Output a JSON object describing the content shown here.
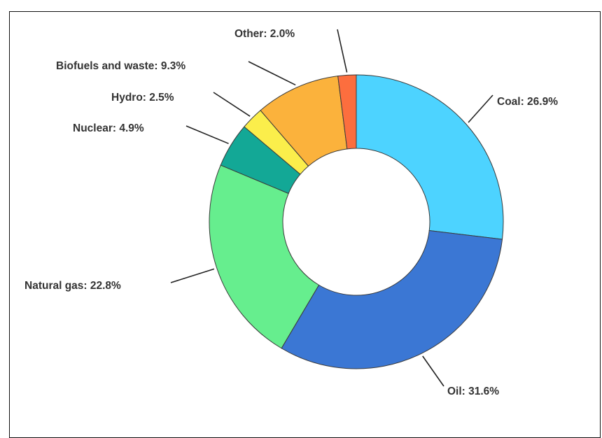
{
  "chart_data": {
    "type": "pie",
    "donut": true,
    "title": "",
    "slices": [
      {
        "label": "Coal: 26.9%",
        "name": "Coal",
        "value": 26.9,
        "color": "#4dd3ff"
      },
      {
        "label": "Oil: 31.6%",
        "name": "Oil",
        "value": 31.6,
        "color": "#3b77d4"
      },
      {
        "label": "Natural gas: 22.8%",
        "name": "Natural gas",
        "value": 22.8,
        "color": "#66ee8e"
      },
      {
        "label": "Nuclear: 4.9%",
        "name": "Nuclear",
        "value": 4.9,
        "color": "#13a896"
      },
      {
        "label": "Hydro: 2.5%",
        "name": "Hydro",
        "value": 2.5,
        "color": "#fbee4b"
      },
      {
        "label": "Biofuels and waste: 9.3%",
        "name": "Biofuels and waste",
        "value": 9.3,
        "color": "#fbb23c"
      },
      {
        "label": "Other: 2.0%",
        "name": "Other",
        "value": 2.0,
        "color": "#fc6e3e"
      }
    ],
    "start": "top, clockwise",
    "legend": "none"
  }
}
